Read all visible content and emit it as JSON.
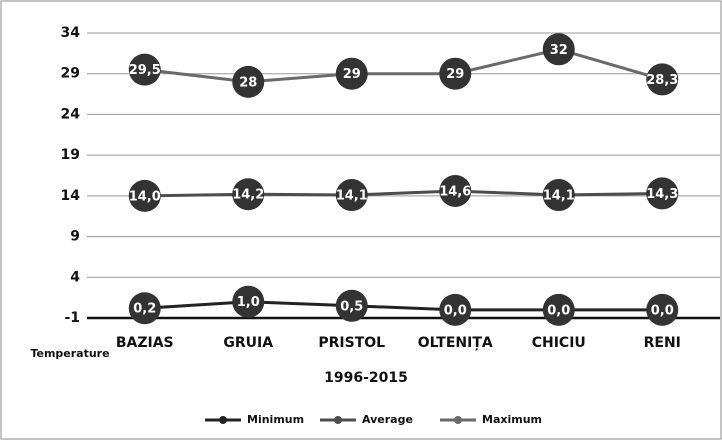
{
  "chart_data": {
    "type": "line",
    "y_label": "Temperature",
    "x_label": "1996-2015",
    "categories": [
      "BAZIAS",
      "GRUIA",
      "PRISTOL",
      "OLTENIȚA",
      "CHICIU",
      "RENI"
    ],
    "series": [
      {
        "name": "Minimum",
        "color": "#222222",
        "values": [
          0.2,
          1.0,
          0.5,
          0,
          0,
          0
        ],
        "value_labels": [
          "0,2",
          "1,0",
          "0,5",
          "0,0",
          "0,0",
          "0,0"
        ]
      },
      {
        "name": "Average",
        "color": "#4d4d4d",
        "values": [
          14.0,
          14.2,
          14.1,
          14.6,
          14.1,
          14.3
        ],
        "value_labels": [
          "14,0",
          "14,2",
          "14,1",
          "14,6",
          "14,1",
          "14,3"
        ]
      },
      {
        "name": "Maximum",
        "color": "#6a6a6a",
        "values": [
          29.5,
          28,
          29,
          29,
          32,
          28.3
        ],
        "value_labels": [
          "29,5",
          "28",
          "29",
          "29",
          "32",
          "28,3"
        ]
      }
    ],
    "ylim": [
      -1,
      34
    ],
    "yticks": [
      -1,
      4,
      9,
      14,
      19,
      24,
      29,
      34
    ],
    "grid": true
  }
}
